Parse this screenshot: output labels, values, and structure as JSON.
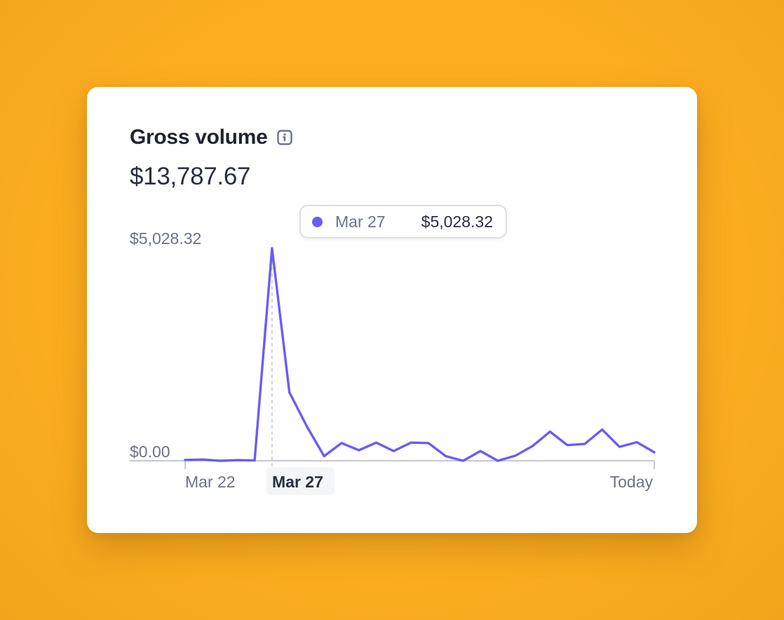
{
  "card": {
    "title": "Gross volume",
    "total": "$13,787.67"
  },
  "icons": {
    "info": "info-icon"
  },
  "colors": {
    "background": "#FDAE20",
    "series": "#6A5DF5",
    "axis": "#C5C9D2",
    "label": "#6B7385",
    "label_active": "#2A3040"
  },
  "tooltip": {
    "date": "Mar 27",
    "value": "$5,028.32"
  },
  "chart_data": {
    "type": "line",
    "ylim": [
      0,
      5028.32
    ],
    "y_tick_labels": [
      "$5,028.32",
      "$0.00"
    ],
    "x_tick_labels": [
      "Mar 22",
      "Mar 27",
      "Today"
    ],
    "highlighted_index": 5,
    "series": [
      {
        "values": [
          20,
          30,
          0,
          15,
          10,
          5028.32,
          1620,
          820,
          110,
          420,
          250,
          430,
          230,
          430,
          420,
          110,
          0,
          230,
          0,
          120,
          350,
          690,
          370,
          400,
          740,
          330,
          440,
          200
        ]
      }
    ]
  }
}
